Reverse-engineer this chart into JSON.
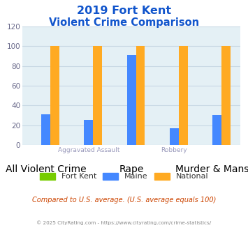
{
  "title_line1": "2019 Fort Kent",
  "title_line2": "Violent Crime Comparison",
  "categories_top": [
    "",
    "Aggravated Assault",
    "",
    "Robbery",
    ""
  ],
  "categories_bottom": [
    "All Violent Crime",
    "",
    "Rape",
    "",
    "Murder & Mans..."
  ],
  "series": {
    "Fort Kent": [
      0,
      0,
      0,
      0,
      0
    ],
    "Maine": [
      31,
      25,
      91,
      17,
      30
    ],
    "National": [
      100,
      100,
      100,
      100,
      100
    ]
  },
  "colors": {
    "Fort Kent": "#77cc00",
    "Maine": "#4488ff",
    "National": "#ffaa22"
  },
  "ylim": [
    0,
    120
  ],
  "yticks": [
    0,
    20,
    40,
    60,
    80,
    100,
    120
  ],
  "plot_bg": "#e4f0f5",
  "title_color": "#1155cc",
  "xtick_color": "#9999bb",
  "ytick_color": "#666688",
  "legend_label_color": "#333333",
  "footer_text": "Compared to U.S. average. (U.S. average equals 100)",
  "footer_color": "#cc4400",
  "copyright_text": "© 2025 CityRating.com - https://www.cityrating.com/crime-statistics/",
  "copyright_color": "#888888",
  "grid_color": "#c8d8e4"
}
